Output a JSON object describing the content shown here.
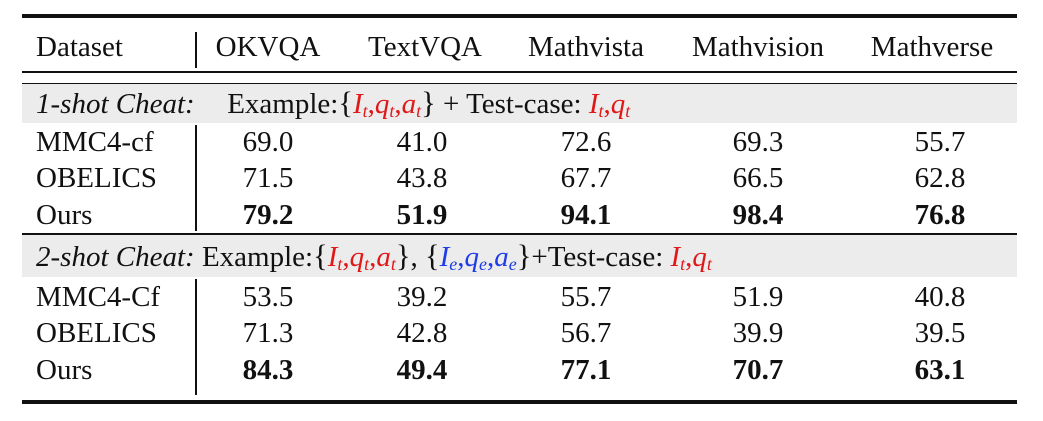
{
  "table": {
    "headers": [
      "Dataset",
      "OKVQA",
      "TextVQA",
      "Mathvista",
      "Mathvision",
      "Mathverse"
    ],
    "sections": [
      {
        "label": "1-shot Cheat:",
        "example_text": "Example:",
        "plus_test": "+ Test-case:",
        "rows": [
          {
            "name": "MMC4-cf",
            "values": [
              "69.0",
              "41.0",
              "72.6",
              "69.3",
              "55.7"
            ],
            "bold": false
          },
          {
            "name": "OBELICS",
            "values": [
              "71.5",
              "43.8",
              "67.7",
              "66.5",
              "62.8"
            ],
            "bold": false
          },
          {
            "name": "Ours",
            "values": [
              "79.2",
              "51.9",
              "94.1",
              "98.4",
              "76.8"
            ],
            "bold": true
          }
        ]
      },
      {
        "label": "2-shot Cheat:",
        "example_text": "Example:",
        "plus_test": "+Test-case:",
        "rows": [
          {
            "name": "MMC4-Cf",
            "values": [
              "53.5",
              "39.2",
              "55.7",
              "51.9",
              "40.8"
            ],
            "bold": false
          },
          {
            "name": "OBELICS",
            "values": [
              "71.3",
              "42.8",
              "56.7",
              "39.9",
              "39.5"
            ],
            "bold": false
          },
          {
            "name": "Ours",
            "values": [
              "84.3",
              "49.4",
              "77.1",
              "70.7",
              "63.1"
            ],
            "bold": true
          }
        ]
      }
    ],
    "math": {
      "I": "I",
      "q": "q",
      "a": "a",
      "t": "t",
      "e": "e",
      "lbrace": "{",
      "rbrace": "}",
      "comma": ",",
      "sep": ", "
    },
    "colors": {
      "target": "#e01818",
      "extra": "#1e3ce8"
    }
  }
}
